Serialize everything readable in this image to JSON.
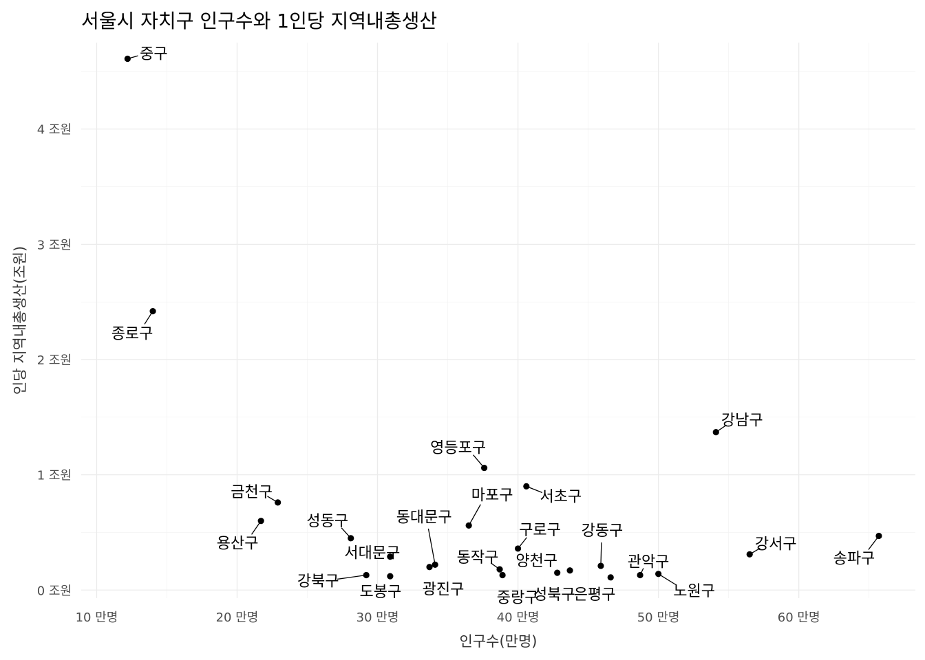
{
  "chart_data": {
    "type": "scatter",
    "title": "서울시 자치구 인구수와 1인당 지역내총생산",
    "xlabel": "인구수(만명)",
    "ylabel": "인당 지역내총생산(조원)",
    "xlim": [
      8.9,
      68.3
    ],
    "ylim": [
      -0.07,
      4.75
    ],
    "x_ticks": [
      10,
      20,
      30,
      40,
      50,
      60
    ],
    "x_tick_labels": [
      "10 만명",
      "20 만명",
      "30 만명",
      "40 만명",
      "50 만명",
      "60 만명"
    ],
    "y_ticks": [
      0,
      1,
      2,
      3,
      4
    ],
    "y_tick_labels": [
      "0 조원",
      "1 조원",
      "2 조원",
      "3 조원",
      "4 조원"
    ],
    "grid": true,
    "points": [
      {
        "label": "중구",
        "x": 12.2,
        "y": 4.61
      },
      {
        "label": "종로구",
        "x": 14.0,
        "y": 2.42
      },
      {
        "label": "강남구",
        "x": 54.1,
        "y": 1.37
      },
      {
        "label": "영등포구",
        "x": 37.6,
        "y": 1.06
      },
      {
        "label": "서초구",
        "x": 40.6,
        "y": 0.9
      },
      {
        "label": "금천구",
        "x": 22.9,
        "y": 0.76
      },
      {
        "label": "마포구",
        "x": 36.5,
        "y": 0.56
      },
      {
        "label": "용산구",
        "x": 21.7,
        "y": 0.6
      },
      {
        "label": "송파구",
        "x": 65.7,
        "y": 0.47
      },
      {
        "label": "성동구",
        "x": 28.1,
        "y": 0.45
      },
      {
        "label": "구로구",
        "x": 40.0,
        "y": 0.36
      },
      {
        "label": "강서구",
        "x": 56.5,
        "y": 0.31
      },
      {
        "label": "서대문구",
        "x": 30.9,
        "y": 0.29
      },
      {
        "label": "동대문구",
        "x": 34.1,
        "y": 0.22
      },
      {
        "label": "광진구",
        "x": 33.7,
        "y": 0.2
      },
      {
        "label": "강동구",
        "x": 45.9,
        "y": 0.21
      },
      {
        "label": "동작구",
        "x": 38.7,
        "y": 0.18
      },
      {
        "label": "은평구",
        "x": 43.7,
        "y": 0.17
      },
      {
        "label": "중랑구",
        "x": 38.9,
        "y": 0.13
      },
      {
        "label": "양천구",
        "x": 42.8,
        "y": 0.15
      },
      {
        "label": "관악구",
        "x": 48.7,
        "y": 0.13
      },
      {
        "label": "노원구",
        "x": 50.0,
        "y": 0.14
      },
      {
        "label": "강북구",
        "x": 29.2,
        "y": 0.13
      },
      {
        "label": "도봉구",
        "x": 30.9,
        "y": 0.12
      },
      {
        "label": "성북구",
        "x": 46.6,
        "y": 0.11
      }
    ]
  }
}
